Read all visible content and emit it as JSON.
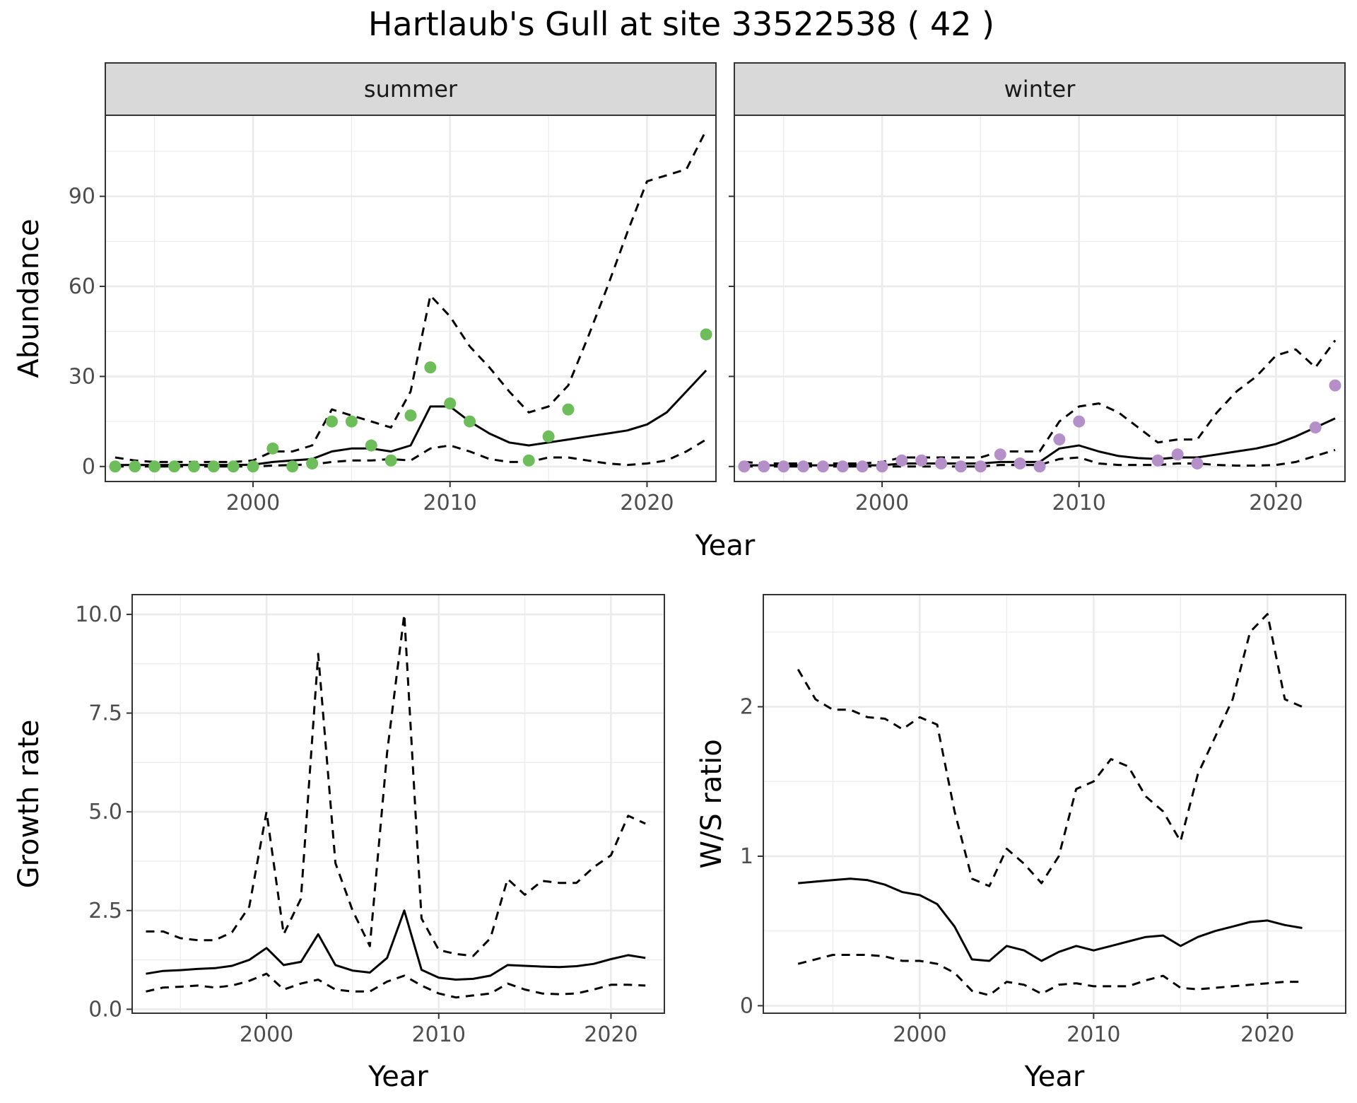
{
  "title": "Hartlaub's Gull at site 33522538 ( 42 )",
  "colors": {
    "summer_points": "#6dbd5b",
    "winter_points": "#b58fc8",
    "line": "#000000",
    "grid": "#ebebeb",
    "strip_bg": "#d9d9d9"
  },
  "chart_data": [
    {
      "type": "line",
      "facet": "summer",
      "xlabel": "Year",
      "ylabel": "Abundance",
      "xlim": [
        1992.5,
        2023.5
      ],
      "ylim": [
        -5,
        117
      ],
      "xticks": [
        2000,
        2010,
        2020
      ],
      "yticks": [
        0,
        30,
        60,
        90
      ],
      "grid": true,
      "series": [
        {
          "role": "mean",
          "style": "solid",
          "x": [
            1993,
            1994,
            1995,
            1996,
            1997,
            1998,
            1999,
            2000,
            2001,
            2002,
            2003,
            2004,
            2005,
            2006,
            2007,
            2008,
            2009,
            2010,
            2011,
            2012,
            2013,
            2014,
            2015,
            2016,
            2017,
            2018,
            2019,
            2020,
            2021,
            2022,
            2023
          ],
          "y": [
            0.5,
            0.5,
            0.5,
            0.5,
            0.5,
            0.5,
            0.5,
            0.6,
            1.5,
            2,
            2.5,
            5,
            6,
            6,
            5,
            7,
            20,
            20,
            15,
            11,
            8,
            7,
            8,
            9,
            10,
            11,
            12,
            14,
            18,
            25,
            32
          ]
        },
        {
          "role": "upper",
          "style": "dashed",
          "x": [
            1993,
            1994,
            1995,
            1996,
            1997,
            1998,
            1999,
            2000,
            2001,
            2002,
            2003,
            2004,
            2005,
            2006,
            2007,
            2008,
            2009,
            2010,
            2011,
            2012,
            2013,
            2014,
            2015,
            2016,
            2017,
            2018,
            2019,
            2020,
            2021,
            2022,
            2023
          ],
          "y": [
            3,
            2,
            1.5,
            1.5,
            1.5,
            1.5,
            1.5,
            2,
            5,
            5,
            7,
            19,
            17,
            15,
            13,
            25,
            57,
            50,
            40,
            33,
            25,
            18,
            20,
            27,
            43,
            60,
            78,
            95,
            97,
            99,
            112
          ]
        },
        {
          "role": "lower",
          "style": "dashed",
          "x": [
            1993,
            1994,
            1995,
            1996,
            1997,
            1998,
            1999,
            2000,
            2001,
            2002,
            2003,
            2004,
            2005,
            2006,
            2007,
            2008,
            2009,
            2010,
            2011,
            2012,
            2013,
            2014,
            2015,
            2016,
            2017,
            2018,
            2019,
            2020,
            2021,
            2022,
            2023
          ],
          "y": [
            0,
            0,
            0,
            0,
            0,
            0,
            0,
            0,
            0.3,
            0.5,
            0.7,
            1.5,
            2,
            2,
            2.5,
            2,
            6,
            7,
            5,
            2.5,
            1.5,
            1.5,
            3,
            3,
            2,
            1,
            0.5,
            1,
            2,
            5,
            9
          ]
        },
        {
          "role": "observed",
          "style": "points",
          "x": [
            1993,
            1994,
            1995,
            1996,
            1997,
            1998,
            1999,
            2000,
            2001,
            2002,
            2003,
            2004,
            2005,
            2006,
            2007,
            2008,
            2009,
            2010,
            2011,
            2014,
            2015,
            2016,
            2023
          ],
          "y": [
            0,
            0,
            0,
            0,
            0,
            0,
            0,
            0,
            6,
            0,
            1,
            15,
            15,
            7,
            2,
            17,
            33,
            21,
            15,
            2,
            10,
            19,
            44
          ]
        }
      ]
    },
    {
      "type": "line",
      "facet": "winter",
      "xlabel": "Year",
      "ylabel": "Abundance",
      "xlim": [
        1992.5,
        2023.5
      ],
      "ylim": [
        -5,
        117
      ],
      "xticks": [
        2000,
        2010,
        2020
      ],
      "yticks": [
        0,
        30,
        60,
        90
      ],
      "grid": true,
      "series": [
        {
          "role": "mean",
          "style": "solid",
          "x": [
            1993,
            1994,
            1995,
            1996,
            1997,
            1998,
            1999,
            2000,
            2001,
            2002,
            2003,
            2004,
            2005,
            2006,
            2007,
            2008,
            2009,
            2010,
            2011,
            2012,
            2013,
            2014,
            2015,
            2016,
            2017,
            2018,
            2019,
            2020,
            2021,
            2022,
            2023
          ],
          "y": [
            0.4,
            0.4,
            0.4,
            0.4,
            0.4,
            0.4,
            0.4,
            0.4,
            1,
            1,
            1,
            1,
            1,
            1.5,
            1.5,
            1.5,
            6,
            7,
            5,
            3.5,
            2.8,
            2.5,
            3,
            3,
            4,
            5,
            6,
            7.5,
            10,
            13,
            16
          ]
        },
        {
          "role": "upper",
          "style": "dashed",
          "x": [
            1993,
            1994,
            1995,
            1996,
            1997,
            1998,
            1999,
            2000,
            2001,
            2002,
            2003,
            2004,
            2005,
            2006,
            2007,
            2008,
            2009,
            2010,
            2011,
            2012,
            2013,
            2014,
            2015,
            2016,
            2017,
            2018,
            2019,
            2020,
            2021,
            2022,
            2023
          ],
          "y": [
            1.5,
            1,
            1,
            1,
            1,
            1,
            1,
            1.5,
            3,
            3,
            3,
            3,
            3,
            5,
            5,
            5,
            15,
            20,
            21,
            18,
            13,
            8,
            9,
            9,
            18,
            25,
            30,
            37,
            39,
            33,
            42
          ]
        },
        {
          "role": "lower",
          "style": "dashed",
          "x": [
            1993,
            1994,
            1995,
            1996,
            1997,
            1998,
            1999,
            2000,
            2001,
            2002,
            2003,
            2004,
            2005,
            2006,
            2007,
            2008,
            2009,
            2010,
            2011,
            2012,
            2013,
            2014,
            2015,
            2016,
            2017,
            2018,
            2019,
            2020,
            2021,
            2022,
            2023
          ],
          "y": [
            0,
            0,
            0,
            0,
            0,
            0,
            0,
            0,
            0,
            0,
            0,
            0,
            0,
            0.5,
            0.5,
            0.5,
            2.5,
            3,
            1,
            0.5,
            0.5,
            0.5,
            1,
            1,
            0.5,
            0.3,
            0.3,
            0.5,
            1.5,
            3.5,
            5.5
          ]
        },
        {
          "role": "observed",
          "style": "points",
          "x": [
            1993,
            1994,
            1995,
            1996,
            1997,
            1998,
            1999,
            2000,
            2001,
            2002,
            2003,
            2004,
            2005,
            2006,
            2007,
            2008,
            2009,
            2010,
            2014,
            2015,
            2016,
            2022,
            2023
          ],
          "y": [
            0,
            0,
            0,
            0,
            0,
            0,
            0,
            0,
            2,
            2,
            1,
            0,
            0,
            4,
            1,
            0,
            9,
            15,
            2,
            4,
            1,
            13,
            27
          ]
        }
      ]
    },
    {
      "type": "line",
      "xlabel": "Year",
      "ylabel": "Growth rate",
      "xlim": [
        1992.2,
        2023.1
      ],
      "ylim": [
        -0.1,
        10.5
      ],
      "xticks": [
        2000,
        2010,
        2020
      ],
      "yticks": [
        0.0,
        2.5,
        5.0,
        7.5,
        10.0
      ],
      "ytick_labels": [
        "0.0",
        "2.5",
        "5.0",
        "7.5",
        "10.0"
      ],
      "grid": true,
      "series": [
        {
          "role": "mean",
          "style": "solid",
          "x": [
            1993,
            1994,
            1995,
            1996,
            1997,
            1998,
            1999,
            2000,
            2001,
            2002,
            2003,
            2004,
            2005,
            2006,
            2007,
            2008,
            2009,
            2010,
            2011,
            2012,
            2013,
            2014,
            2015,
            2016,
            2017,
            2018,
            2019,
            2020,
            2021,
            2022
          ],
          "y": [
            0.9,
            0.97,
            0.99,
            1.02,
            1.04,
            1.1,
            1.25,
            1.55,
            1.12,
            1.2,
            1.9,
            1.12,
            0.98,
            0.93,
            1.3,
            2.5,
            1.0,
            0.8,
            0.75,
            0.77,
            0.85,
            1.12,
            1.1,
            1.08,
            1.07,
            1.09,
            1.15,
            1.27,
            1.37,
            1.3
          ]
        },
        {
          "role": "upper",
          "style": "dashed",
          "x": [
            1993,
            1994,
            1995,
            1996,
            1997,
            1998,
            1999,
            2000,
            2001,
            2002,
            2003,
            2004,
            2005,
            2006,
            2007,
            2008,
            2009,
            2010,
            2011,
            2012,
            2013,
            2014,
            2015,
            2016,
            2017,
            2018,
            2019,
            2020,
            2021,
            2022
          ],
          "y": [
            1.97,
            1.97,
            1.8,
            1.75,
            1.75,
            1.95,
            2.6,
            5.0,
            1.9,
            2.8,
            9.0,
            3.7,
            2.5,
            1.6,
            6.5,
            10.0,
            2.3,
            1.5,
            1.4,
            1.35,
            1.8,
            3.3,
            2.9,
            3.25,
            3.2,
            3.2,
            3.6,
            3.9,
            4.9,
            4.7
          ]
        },
        {
          "role": "lower",
          "style": "dashed",
          "x": [
            1993,
            1994,
            1995,
            1996,
            1997,
            1998,
            1999,
            2000,
            2001,
            2002,
            2003,
            2004,
            2005,
            2006,
            2007,
            2008,
            2009,
            2010,
            2011,
            2012,
            2013,
            2014,
            2015,
            2016,
            2017,
            2018,
            2019,
            2020,
            2021,
            2022
          ],
          "y": [
            0.45,
            0.55,
            0.57,
            0.6,
            0.55,
            0.6,
            0.72,
            0.9,
            0.5,
            0.65,
            0.75,
            0.5,
            0.45,
            0.45,
            0.7,
            0.85,
            0.6,
            0.4,
            0.3,
            0.35,
            0.4,
            0.65,
            0.5,
            0.4,
            0.38,
            0.4,
            0.5,
            0.62,
            0.62,
            0.6
          ]
        }
      ]
    },
    {
      "type": "line",
      "xlabel": "Year",
      "ylabel": "W/S ratio",
      "xlim": [
        1991.0,
        2024.5
      ],
      "ylim": [
        -0.05,
        2.75
      ],
      "xticks": [
        2000,
        2010,
        2020
      ],
      "yticks": [
        0,
        1,
        2
      ],
      "grid": true,
      "series": [
        {
          "role": "mean",
          "style": "solid",
          "x": [
            1993,
            1994,
            1995,
            1996,
            1997,
            1998,
            1999,
            2000,
            2001,
            2002,
            2003,
            2004,
            2005,
            2006,
            2007,
            2008,
            2009,
            2010,
            2011,
            2012,
            2013,
            2014,
            2015,
            2016,
            2017,
            2018,
            2019,
            2020,
            2021,
            2022
          ],
          "y": [
            0.82,
            0.83,
            0.84,
            0.85,
            0.84,
            0.81,
            0.76,
            0.74,
            0.68,
            0.53,
            0.31,
            0.3,
            0.4,
            0.37,
            0.3,
            0.36,
            0.4,
            0.37,
            0.4,
            0.43,
            0.46,
            0.47,
            0.4,
            0.46,
            0.5,
            0.53,
            0.56,
            0.57,
            0.54,
            0.52
          ]
        },
        {
          "role": "upper",
          "style": "dashed",
          "x": [
            1993,
            1994,
            1995,
            1996,
            1997,
            1998,
            1999,
            2000,
            2001,
            2002,
            2003,
            2004,
            2005,
            2006,
            2007,
            2008,
            2009,
            2010,
            2011,
            2012,
            2013,
            2014,
            2015,
            2016,
            2017,
            2018,
            2019,
            2020,
            2021,
            2022
          ],
          "y": [
            2.25,
            2.05,
            1.98,
            1.98,
            1.93,
            1.92,
            1.85,
            1.93,
            1.88,
            1.3,
            0.85,
            0.8,
            1.05,
            0.95,
            0.82,
            1.0,
            1.45,
            1.5,
            1.65,
            1.6,
            1.4,
            1.3,
            1.1,
            1.55,
            1.8,
            2.05,
            2.5,
            2.62,
            2.05,
            2.0
          ]
        },
        {
          "role": "lower",
          "style": "dashed",
          "x": [
            1993,
            1994,
            1995,
            1996,
            1997,
            1998,
            1999,
            2000,
            2001,
            2002,
            2003,
            2004,
            2005,
            2006,
            2007,
            2008,
            2009,
            2010,
            2011,
            2012,
            2013,
            2014,
            2015,
            2016,
            2017,
            2018,
            2019,
            2020,
            2021,
            2022
          ],
          "y": [
            0.28,
            0.31,
            0.34,
            0.34,
            0.34,
            0.33,
            0.3,
            0.3,
            0.28,
            0.22,
            0.1,
            0.07,
            0.16,
            0.14,
            0.08,
            0.14,
            0.15,
            0.13,
            0.13,
            0.13,
            0.17,
            0.2,
            0.12,
            0.11,
            0.12,
            0.13,
            0.14,
            0.15,
            0.16,
            0.16
          ]
        }
      ]
    }
  ]
}
